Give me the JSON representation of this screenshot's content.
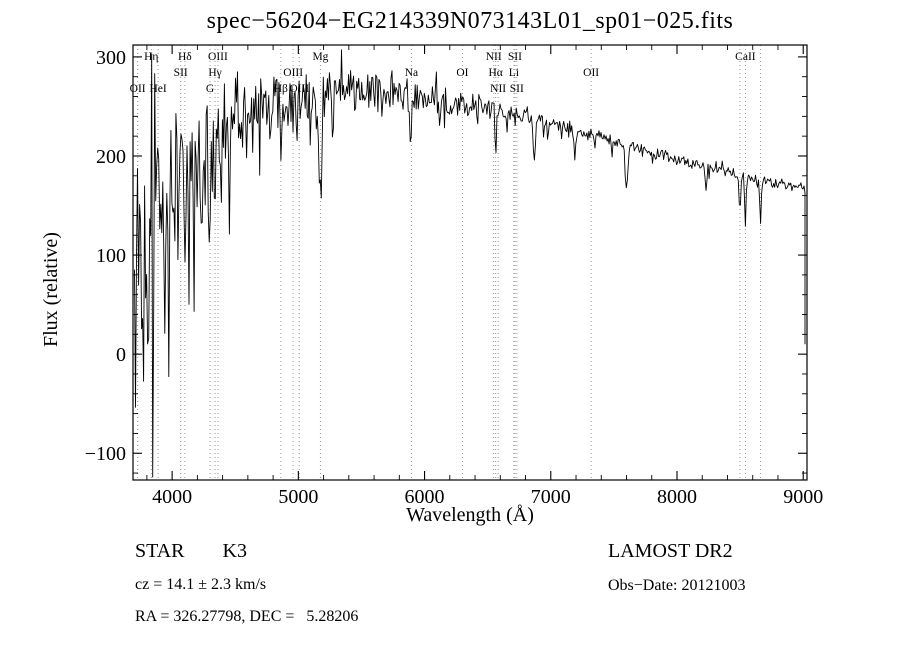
{
  "chart_data": {
    "type": "line",
    "title": "spec−56204−EG214339N073143L01_sp01−025.fits",
    "xlabel": "Wavelength (Å)",
    "ylabel": "Flux (relative)",
    "xlim": [
      3690,
      9030
    ],
    "ylim": [
      -127,
      312
    ],
    "xticks": [
      4000,
      5000,
      6000,
      7000,
      8000,
      9000
    ],
    "yticks": [
      -100,
      0,
      100,
      200,
      300
    ],
    "line_color": "#000000",
    "grid": false,
    "spectral_lines": [
      {
        "label": "OII",
        "wavelength": 3727,
        "row": 3
      },
      {
        "label": "Hη",
        "wavelength": 3835,
        "row": 1
      },
      {
        "label": "HeI",
        "wavelength": 3889,
        "row": 3
      },
      {
        "label": "SII",
        "wavelength": 4068,
        "row": 2
      },
      {
        "label": "Hδ",
        "wavelength": 4101,
        "row": 1
      },
      {
        "label": "G",
        "wavelength": 4300,
        "row": 3
      },
      {
        "label": "Hγ",
        "wavelength": 4340,
        "row": 2
      },
      {
        "label": "OIII",
        "wavelength": 4363,
        "row": 1
      },
      {
        "label": "Hβ",
        "wavelength": 4861,
        "row": 3
      },
      {
        "label": "OIII",
        "wavelength": 4959,
        "row": 2
      },
      {
        "label": "OIII",
        "wavelength": 5007,
        "row": 3
      },
      {
        "label": "Mg",
        "wavelength": 5175,
        "row": 1
      },
      {
        "label": "Na",
        "wavelength": 5896,
        "row": 2
      },
      {
        "label": "OI",
        "wavelength": 6300,
        "row": 2
      },
      {
        "label": "NII",
        "wavelength": 6548,
        "row": 1
      },
      {
        "label": "Hα",
        "wavelength": 6563,
        "row": 2
      },
      {
        "label": "NII",
        "wavelength": 6583,
        "row": 3
      },
      {
        "label": "Li",
        "wavelength": 6708,
        "row": 2
      },
      {
        "label": "SII",
        "wavelength": 6716,
        "row": 1
      },
      {
        "label": "SII",
        "wavelength": 6731,
        "row": 3
      },
      {
        "label": "OII",
        "wavelength": 7320,
        "row": 2
      },
      {
        "label": "",
        "wavelength": 8498,
        "row": 0
      },
      {
        "label": "CaII",
        "wavelength": 8542,
        "row": 1
      },
      {
        "label": "",
        "wavelength": 8662,
        "row": 0
      }
    ],
    "continuum": [
      [
        3700,
        112
      ],
      [
        3800,
        126
      ],
      [
        3900,
        146
      ],
      [
        4000,
        162
      ],
      [
        4100,
        174
      ],
      [
        4200,
        187
      ],
      [
        4300,
        202
      ],
      [
        4400,
        226
      ],
      [
        4500,
        237
      ],
      [
        4600,
        243
      ],
      [
        4700,
        247
      ],
      [
        4800,
        251
      ],
      [
        4900,
        254
      ],
      [
        5000,
        256
      ],
      [
        5100,
        258
      ],
      [
        5200,
        261
      ],
      [
        5300,
        264
      ],
      [
        5400,
        266
      ],
      [
        5500,
        267
      ],
      [
        5600,
        267
      ],
      [
        5700,
        266
      ],
      [
        5800,
        264
      ],
      [
        5900,
        262
      ],
      [
        6000,
        259
      ],
      [
        6100,
        257
      ],
      [
        6200,
        254
      ],
      [
        6300,
        252
      ],
      [
        6400,
        250
      ],
      [
        6500,
        248
      ],
      [
        6600,
        246
      ],
      [
        6700,
        243
      ],
      [
        6800,
        240
      ],
      [
        6900,
        237
      ],
      [
        7000,
        233
      ],
      [
        7100,
        229
      ],
      [
        7200,
        226
      ],
      [
        7300,
        222
      ],
      [
        7400,
        219
      ],
      [
        7500,
        215
      ],
      [
        7600,
        211
      ],
      [
        7700,
        208
      ],
      [
        7800,
        204
      ],
      [
        7900,
        201
      ],
      [
        8000,
        197
      ],
      [
        8100,
        193
      ],
      [
        8200,
        190
      ],
      [
        8300,
        187
      ],
      [
        8400,
        184
      ],
      [
        8500,
        181
      ],
      [
        8600,
        177
      ],
      [
        8700,
        173
      ],
      [
        8800,
        171
      ],
      [
        8900,
        170
      ],
      [
        9000,
        170
      ],
      [
        9020,
        168
      ]
    ],
    "noise_amplitude": [
      [
        3700,
        195
      ],
      [
        3750,
        190
      ],
      [
        3800,
        180
      ],
      [
        3850,
        168
      ],
      [
        3900,
        152
      ],
      [
        3950,
        134
      ],
      [
        4000,
        114
      ],
      [
        4100,
        94
      ],
      [
        4200,
        80
      ],
      [
        4300,
        70
      ],
      [
        4400,
        62
      ],
      [
        4500,
        57
      ],
      [
        4600,
        53
      ],
      [
        4700,
        50
      ],
      [
        4800,
        47
      ],
      [
        4900,
        44
      ],
      [
        5000,
        41
      ],
      [
        5100,
        37
      ],
      [
        5200,
        34
      ],
      [
        5300,
        33
      ],
      [
        5400,
        32
      ],
      [
        5500,
        30
      ],
      [
        5600,
        28
      ],
      [
        5700,
        26
      ],
      [
        5800,
        24
      ],
      [
        5900,
        22
      ],
      [
        6000,
        20
      ],
      [
        6200,
        17
      ],
      [
        6400,
        15
      ],
      [
        6600,
        13
      ],
      [
        6800,
        12
      ],
      [
        7000,
        10
      ],
      [
        7200,
        9
      ],
      [
        7500,
        8
      ],
      [
        8000,
        7
      ],
      [
        8500,
        7
      ],
      [
        9000,
        9
      ]
    ],
    "absorption_features": [
      {
        "center": 3934,
        "depth": 150,
        "width": 9
      },
      {
        "center": 3968,
        "depth": 130,
        "width": 9
      },
      {
        "center": 4101,
        "depth": 85,
        "width": 9
      },
      {
        "center": 4227,
        "depth": 60,
        "width": 7
      },
      {
        "center": 4300,
        "depth": 70,
        "width": 13
      },
      {
        "center": 4340,
        "depth": 60,
        "width": 8
      },
      {
        "center": 4383,
        "depth": 65,
        "width": 7
      },
      {
        "center": 4455,
        "depth": 70,
        "width": 8
      },
      {
        "center": 4861,
        "depth": 55,
        "width": 8
      },
      {
        "center": 5175,
        "depth": 105,
        "width": 13
      },
      {
        "center": 5270,
        "depth": 40,
        "width": 9
      },
      {
        "center": 5890,
        "depth": 65,
        "width": 9
      },
      {
        "center": 6122,
        "depth": 30,
        "width": 8
      },
      {
        "center": 6563,
        "depth": 40,
        "width": 8
      },
      {
        "center": 6870,
        "depth": 40,
        "width": 11
      },
      {
        "center": 7190,
        "depth": 22,
        "width": 10
      },
      {
        "center": 7600,
        "depth": 45,
        "width": 13
      },
      {
        "center": 8230,
        "depth": 20,
        "width": 10
      },
      {
        "center": 8498,
        "depth": 40,
        "width": 7
      },
      {
        "center": 8542,
        "depth": 55,
        "width": 8
      },
      {
        "center": 8662,
        "depth": 45,
        "width": 8
      }
    ],
    "noise_seed": 13,
    "sample_step_angstrom": 8
  },
  "annotations": {
    "class_label": "STAR",
    "subclass": "K3",
    "survey": "LAMOST DR2",
    "cz": "cz = 14.1 ± 2.3 km/s",
    "obs_date": "Obs−Date: 20121003",
    "coords": "RA = 326.27798, DEC =   5.28206"
  }
}
